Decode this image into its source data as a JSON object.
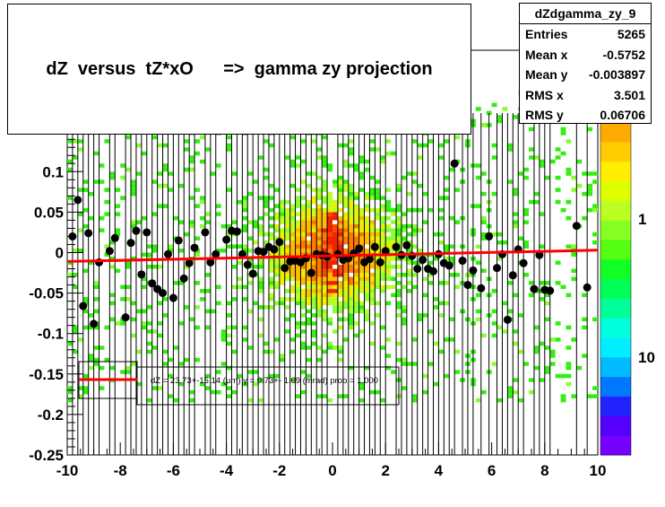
{
  "title": "dZ  versus  tZ*xO      =>  gamma zy projection",
  "stats": {
    "name": "dZdgamma_zy_9",
    "rows": [
      {
        "key": "Entries",
        "value": "5265"
      },
      {
        "key": "Mean x",
        "value": "-0.5752"
      },
      {
        "key": "Mean y",
        "value": "-0.003897"
      },
      {
        "key": "RMS x",
        "value": "3.501"
      },
      {
        "key": "RMS y",
        "value": "0.06706"
      }
    ]
  },
  "fit_label": "dZ =  23.73+-15.14 (µm) γ =    0.73+- 1.69 (mrad) prob = 1.000",
  "chart_data": {
    "type": "scatter",
    "xlim": [
      -10,
      10
    ],
    "ylim": [
      -0.25,
      0.25
    ],
    "x_ticks": [
      -10,
      -8,
      -6,
      -4,
      -2,
      0,
      2,
      4,
      6,
      8,
      10
    ],
    "x_tick_labels": [
      "-10",
      "-8",
      "-6",
      "-4",
      "-2",
      "0",
      "2",
      "4",
      "6",
      "8",
      "10"
    ],
    "y_ticks": [
      -0.25,
      -0.2,
      -0.15,
      -0.1,
      -0.05,
      0,
      0.05,
      0.1
    ],
    "y_tick_labels": [
      "-0.25",
      "-0.2",
      "-0.15",
      "-0.1",
      "-0.05",
      "0",
      "0.05",
      "0.1"
    ],
    "colorbar_labels": [
      "1",
      "10"
    ],
    "fit_line": {
      "x": [
        -10,
        10
      ],
      "y": [
        -0.011,
        0.003
      ],
      "color": "#ff0000"
    },
    "profile_points": [
      {
        "x": -9.8,
        "y": 0.02
      },
      {
        "x": -9.6,
        "y": 0.065
      },
      {
        "x": -9.4,
        "y": -0.066
      },
      {
        "x": -9.2,
        "y": 0.024
      },
      {
        "x": -9.0,
        "y": -0.088
      },
      {
        "x": -8.8,
        "y": -0.012
      },
      {
        "x": -8.4,
        "y": 0.002
      },
      {
        "x": -8.2,
        "y": 0.018
      },
      {
        "x": -7.8,
        "y": -0.08
      },
      {
        "x": -7.6,
        "y": 0.012
      },
      {
        "x": -7.4,
        "y": 0.027
      },
      {
        "x": -7.2,
        "y": -0.027
      },
      {
        "x": -7.0,
        "y": 0.025
      },
      {
        "x": -6.8,
        "y": -0.038
      },
      {
        "x": -6.6,
        "y": -0.045
      },
      {
        "x": -6.4,
        "y": -0.05
      },
      {
        "x": -6.2,
        "y": -0.002
      },
      {
        "x": -6.0,
        "y": -0.056
      },
      {
        "x": -5.8,
        "y": 0.015
      },
      {
        "x": -5.6,
        "y": -0.032
      },
      {
        "x": -5.4,
        "y": -0.013
      },
      {
        "x": -5.2,
        "y": 0.006
      },
      {
        "x": -4.8,
        "y": 0.025
      },
      {
        "x": -4.6,
        "y": -0.012
      },
      {
        "x": -4.4,
        "y": -0.002
      },
      {
        "x": -4.0,
        "y": 0.016
      },
      {
        "x": -3.8,
        "y": 0.027
      },
      {
        "x": -3.6,
        "y": 0.026
      },
      {
        "x": -3.4,
        "y": -0.002
      },
      {
        "x": -3.2,
        "y": -0.015
      },
      {
        "x": -3.0,
        "y": -0.026
      },
      {
        "x": -2.8,
        "y": 0.002
      },
      {
        "x": -2.6,
        "y": 0.001
      },
      {
        "x": -2.4,
        "y": 0.007
      },
      {
        "x": -2.2,
        "y": 0.004
      },
      {
        "x": -2.0,
        "y": 0.013
      },
      {
        "x": -1.8,
        "y": -0.019
      },
      {
        "x": -1.6,
        "y": -0.011
      },
      {
        "x": -1.4,
        "y": -0.01
      },
      {
        "x": -1.2,
        "y": -0.012
      },
      {
        "x": -1.0,
        "y": -0.007
      },
      {
        "x": -0.8,
        "y": -0.025
      },
      {
        "x": -0.6,
        "y": -0.002
      },
      {
        "x": -0.4,
        "y": -0.003
      },
      {
        "x": -0.2,
        "y": -0.005
      },
      {
        "x": 0.2,
        "y": -0.002
      },
      {
        "x": 0.4,
        "y": -0.009
      },
      {
        "x": 0.6,
        "y": -0.007
      },
      {
        "x": 0.8,
        "y": -0.001
      },
      {
        "x": 1.0,
        "y": 0.005
      },
      {
        "x": 1.2,
        "y": -0.012
      },
      {
        "x": 1.4,
        "y": -0.008
      },
      {
        "x": 1.6,
        "y": 0.007
      },
      {
        "x": 1.8,
        "y": -0.012
      },
      {
        "x": 2.0,
        "y": 0.002
      },
      {
        "x": 2.4,
        "y": 0.007
      },
      {
        "x": 2.6,
        "y": -0.003
      },
      {
        "x": 2.8,
        "y": 0.009
      },
      {
        "x": 3.0,
        "y": -0.004
      },
      {
        "x": 3.2,
        "y": -0.02
      },
      {
        "x": 3.4,
        "y": -0.009
      },
      {
        "x": 3.6,
        "y": -0.02
      },
      {
        "x": 3.8,
        "y": -0.023
      },
      {
        "x": 4.0,
        "y": -0.002
      },
      {
        "x": 4.2,
        "y": -0.013
      },
      {
        "x": 4.4,
        "y": -0.016
      },
      {
        "x": 4.6,
        "y": 0.11
      },
      {
        "x": 4.9,
        "y": -0.01
      },
      {
        "x": 5.1,
        "y": -0.04
      },
      {
        "x": 5.3,
        "y": -0.022
      },
      {
        "x": 5.6,
        "y": -0.044
      },
      {
        "x": 5.9,
        "y": 0.02
      },
      {
        "x": 6.2,
        "y": -0.019
      },
      {
        "x": 6.4,
        "y": -0.002
      },
      {
        "x": 6.6,
        "y": -0.083
      },
      {
        "x": 6.8,
        "y": -0.028
      },
      {
        "x": 7.0,
        "y": 0.004
      },
      {
        "x": 7.2,
        "y": -0.013
      },
      {
        "x": 7.6,
        "y": -0.045
      },
      {
        "x": 7.8,
        "y": -0.003
      },
      {
        "x": 8.0,
        "y": -0.046
      },
      {
        "x": 8.2,
        "y": -0.047
      },
      {
        "x": 9.2,
        "y": 0.033
      },
      {
        "x": 9.6,
        "y": -0.043
      }
    ]
  }
}
